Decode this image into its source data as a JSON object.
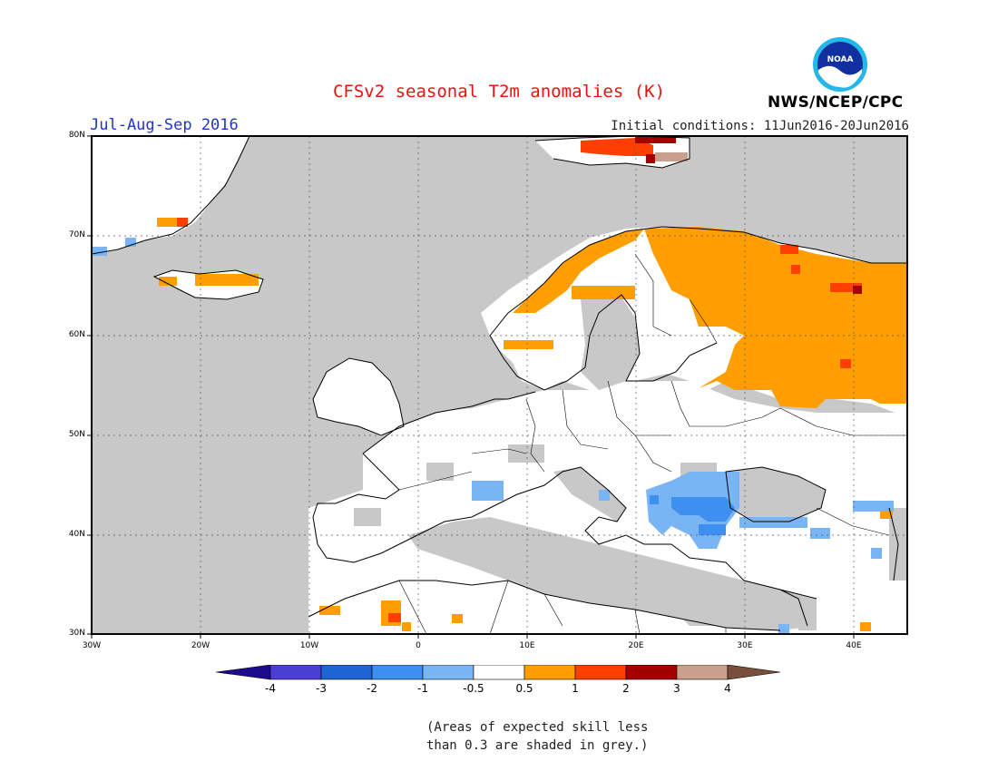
{
  "title": "CFSv2 seasonal T2m anomalies (K)",
  "period": "Jul-Aug-Sep 2016",
  "initial_conditions": "Initial conditions: 11Jun2016-20Jun2016",
  "agency": "NWS/NCEP/CPC",
  "logo_text": "NOAA",
  "map": {
    "lon_range": [
      -30,
      45
    ],
    "lat_range": [
      30,
      80
    ],
    "lat_labels": [
      "80N",
      "70N",
      "60N",
      "50N",
      "40N",
      "30N"
    ],
    "lon_labels": [
      "30W",
      "20W",
      "10W",
      "0",
      "10E",
      "20E",
      "30E",
      "40E"
    ]
  },
  "legend": {
    "labels": [
      "-4",
      "-3",
      "-2",
      "-1",
      "-0.5",
      "0.5",
      "1",
      "2",
      "3",
      "4"
    ],
    "colors": {
      "lt_-4": "#1e0a8c",
      "-4_-3": "#4a3fd0",
      "-3_-2": "#1f64d3",
      "-2_-1": "#3d8ff0",
      "-1_-0.5": "#79b4f5",
      "-0.5_0.5": "#ffffff",
      "0.5_1": "#ff9e00",
      "1_2": "#ff3f00",
      "2_3": "#a50000",
      "3_4": "#c8a08c",
      "gt_4": "#7a4e3c"
    },
    "skill_grey": "#c8c8c8"
  },
  "footnote_line1": "(Areas of expected skill less",
  "footnote_line2": "than 0.3 are shaded in grey.)"
}
